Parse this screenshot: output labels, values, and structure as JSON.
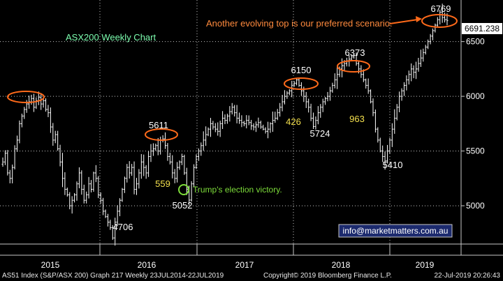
{
  "chart_data": {
    "type": "ohlc",
    "title": "ASX200 Weekly Chart",
    "x_tick_labels": [
      "2015",
      "2016",
      "2017",
      "2018",
      "2019"
    ],
    "y_ticks": [
      5000,
      5500,
      6000,
      6500
    ],
    "y_tick_labels": [
      "5000",
      "5500",
      "6000",
      "6500"
    ],
    "ylim": [
      4650,
      6880
    ],
    "grid": true,
    "last_value": 6691.238,
    "last_value_label": "6691.238",
    "price_labels": [
      {
        "text": "6769",
        "value": 6769,
        "color": "#ffffff"
      },
      {
        "text": "6373",
        "value": 6373,
        "color": "#ffffff"
      },
      {
        "text": "6150",
        "value": 6150,
        "color": "#ffffff"
      },
      {
        "text": "5611",
        "value": 5611,
        "color": "#ffffff"
      },
      {
        "text": "5724",
        "value": 5724,
        "color": "#ffffff"
      },
      {
        "text": "5410",
        "value": 5410,
        "color": "#ffffff"
      },
      {
        "text": "5052",
        "value": 5052,
        "color": "#ffffff"
      },
      {
        "text": "4706",
        "value": 4706,
        "color": "#ffffff"
      },
      {
        "text": "426",
        "value": 426,
        "color": "#f4e04d"
      },
      {
        "text": "963",
        "value": 963,
        "color": "#f4e04d"
      },
      {
        "text": "559",
        "value": 559,
        "color": "#f4e04d"
      }
    ],
    "annotations": [
      {
        "text": "Another evolving top is our preferred scenario.",
        "color": "#ff8a3d"
      },
      {
        "text": "Trump's election victory.",
        "color": "#7ddc3a"
      },
      {
        "text": "info@marketmatters.com.au",
        "color": "#ffffff"
      }
    ],
    "weekly_closes": [
      5400,
      5480,
      5300,
      5250,
      5350,
      5520,
      5600,
      5750,
      5820,
      5880,
      5930,
      5950,
      5980,
      5900,
      5960,
      5990,
      5930,
      5960,
      5880,
      5850,
      5720,
      5600,
      5650,
      5520,
      5400,
      5250,
      5150,
      5100,
      5000,
      5050,
      5100,
      5200,
      5300,
      5150,
      5050,
      5100,
      5200,
      5150,
      5300,
      5250,
      5100,
      5050,
      4950,
      4900,
      4850,
      4800,
      4706,
      4850,
      4950,
      5050,
      5150,
      5250,
      5350,
      5300,
      5350,
      5150,
      5200,
      5300,
      5400,
      5350,
      5300,
      5450,
      5500,
      5520,
      5550,
      5500,
      5600,
      5611,
      5550,
      5450,
      5400,
      5300,
      5250,
      5350,
      5400,
      5450,
      5300,
      5150,
      5052,
      5200,
      5350,
      5450,
      5500,
      5550,
      5600,
      5650,
      5700,
      5750,
      5720,
      5700,
      5680,
      5750,
      5800,
      5780,
      5820,
      5860,
      5900,
      5850,
      5800,
      5780,
      5760,
      5750,
      5780,
      5760,
      5730,
      5720,
      5740,
      5760,
      5720,
      5700,
      5680,
      5700,
      5750,
      5780,
      5800,
      5850,
      5900,
      5950,
      6000,
      6030,
      6050,
      6100,
      6120,
      6150,
      6100,
      6050,
      6000,
      5950,
      5900,
      5800,
      5724,
      5780,
      5850,
      5900,
      5950,
      5980,
      6000,
      6050,
      6100,
      6150,
      6200,
      6250,
      6280,
      6300,
      6320,
      6340,
      6360,
      6373,
      6300,
      6250,
      6200,
      6150,
      6100,
      6050,
      5950,
      5850,
      5700,
      5600,
      5500,
      5450,
      5410,
      5500,
      5600,
      5700,
      5800,
      5900,
      6000,
      6050,
      6100,
      6150,
      6200,
      6250,
      6220,
      6250,
      6300,
      6350,
      6400,
      6450,
      6500,
      6550,
      6600,
      6650,
      6700,
      6769,
      6720,
      6700,
      6691.238
    ]
  },
  "footer": {
    "left": "AS51 Index (S&P/ASX 200) Graph 217  Weekly 23JUL2014-22JUL2019",
    "center": "Copyright© 2019 Bloomberg Finance L.P.",
    "right": "22-Jul-2019 20:26:43"
  },
  "colors": {
    "background": "#000000",
    "grid": "#c8c8c8",
    "bars": "#ffffff",
    "circle": "#ff6a1a",
    "arrow": "#ff6a1a"
  }
}
